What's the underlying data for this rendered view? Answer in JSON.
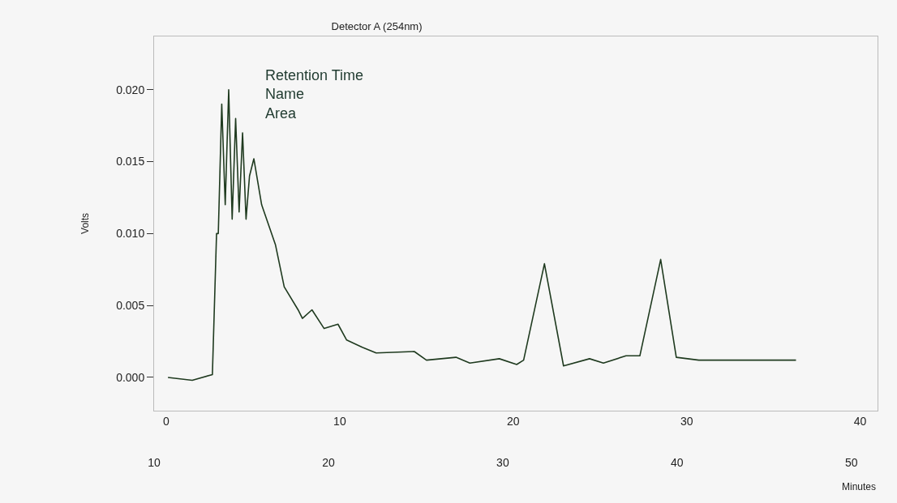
{
  "chart_data": {
    "type": "line",
    "title": "Detector A (254nm)",
    "xlabel": "Minutes",
    "ylabel": "Volts",
    "annotations": [
      "Retention Time",
      "Name",
      "Area"
    ],
    "x": [
      0.1,
      1.5,
      2.66,
      2.9,
      3.0,
      3.2,
      3.4,
      3.6,
      3.8,
      4.0,
      4.2,
      4.4,
      4.6,
      4.8,
      5.05,
      5.5,
      6.3,
      6.8,
      7.6,
      7.85,
      8.4,
      9.1,
      9.9,
      10.4,
      11.3,
      12.1,
      14.3,
      15.0,
      16.7,
      17.5,
      19.2,
      20.2,
      20.6,
      21.8,
      22.9,
      24.4,
      25.2,
      26.5,
      27.3,
      28.5,
      29.4,
      30.7,
      36.3
    ],
    "series": [
      {
        "color": "#1f3a1f",
        "values": [
          0.0,
          -0.0002,
          0.0002,
          0.01,
          0.01,
          0.019,
          0.012,
          0.02,
          0.011,
          0.018,
          0.0115,
          0.017,
          0.011,
          0.014,
          0.0152,
          0.012,
          0.0092,
          0.0063,
          0.0047,
          0.0041,
          0.0047,
          0.0034,
          0.0037,
          0.0026,
          0.0021,
          0.0017,
          0.0018,
          0.0012,
          0.0014,
          0.001,
          0.0013,
          0.0009,
          0.0012,
          0.0079,
          0.0008,
          0.0013,
          0.001,
          0.0015,
          0.0015,
          0.0082,
          0.0014,
          0.0012,
          0.0012
        ]
      }
    ],
    "xlim": [
      -0.7,
      41
    ],
    "xticks": [
      0,
      10,
      20,
      30,
      40
    ],
    "x2lim": [
      10,
      51.5
    ],
    "x2ticks": [
      10,
      20,
      30,
      40,
      50
    ],
    "ylim": [
      -0.0023,
      0.0237
    ],
    "yticks": [
      {
        "value": 0,
        "label": "0.000"
      },
      {
        "value": 0.005,
        "label": "0.005"
      },
      {
        "value": 0.01,
        "label": "0.010"
      },
      {
        "value": 0.015,
        "label": "0.015"
      },
      {
        "value": 0.02,
        "label": "0.020"
      }
    ],
    "grid": false,
    "legend": false,
    "marker": "none",
    "line_style": "solid"
  }
}
